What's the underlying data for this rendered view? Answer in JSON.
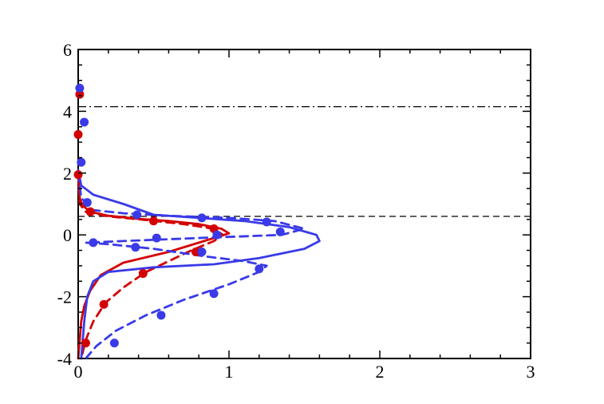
{
  "chart_data": {
    "type": "line",
    "title": "",
    "xlabel": "",
    "ylabel": "",
    "xlim": [
      0,
      3
    ],
    "ylim": [
      -4,
      6
    ],
    "grid": false,
    "legend": "none",
    "x_ticks": [
      "0",
      "1",
      "2",
      "3"
    ],
    "y_ticks": [
      "-4",
      "-2",
      "0",
      "2",
      "4",
      "6"
    ],
    "reference_lines": [
      {
        "style": "dash-dot",
        "y": 4.15,
        "color": "#000000"
      },
      {
        "style": "dashed",
        "y": 0.6,
        "color": "#000000"
      }
    ],
    "series": [
      {
        "style": "solid",
        "color": "#d40000",
        "x": [
          0.0,
          0.01,
          0.03,
          0.08,
          0.2,
          0.4,
          0.6,
          0.8,
          0.95,
          1.0,
          0.9,
          0.6,
          0.3,
          0.15,
          0.08,
          0.04,
          0.02,
          0.01,
          0.0
        ],
        "y": [
          2.0,
          1.2,
          0.95,
          0.75,
          0.62,
          0.52,
          0.45,
          0.35,
          0.2,
          0.05,
          -0.1,
          -0.55,
          -0.9,
          -1.3,
          -1.8,
          -2.3,
          -2.8,
          -3.4,
          -4.0
        ]
      },
      {
        "style": "dashed",
        "color": "#d40000",
        "x": [
          0.0,
          0.01,
          0.05,
          0.2,
          0.45,
          0.7,
          0.9,
          0.96,
          0.9,
          0.75,
          0.6,
          0.45,
          0.3,
          0.18,
          0.1,
          0.05,
          0.02
        ],
        "y": [
          2.0,
          1.0,
          0.75,
          0.6,
          0.48,
          0.35,
          0.2,
          0.0,
          -0.2,
          -0.5,
          -0.85,
          -1.2,
          -1.7,
          -2.2,
          -2.8,
          -3.4,
          -4.0
        ]
      },
      {
        "style": "solid",
        "color": "#3a3ae8",
        "x": [
          0.0,
          0.02,
          0.1,
          0.3,
          0.5,
          0.8,
          1.1,
          1.4,
          1.58,
          1.6,
          1.5,
          1.2,
          0.9,
          0.5,
          0.2,
          0.1,
          0.06,
          0.04,
          0.02
        ],
        "y": [
          2.1,
          1.6,
          1.3,
          1.0,
          0.65,
          0.55,
          0.45,
          0.25,
          0.0,
          -0.2,
          -0.45,
          -0.75,
          -0.95,
          -1.05,
          -1.2,
          -1.5,
          -2.0,
          -2.8,
          -4.0
        ]
      },
      {
        "style": "dashed",
        "color": "#3a3ae8",
        "x": [
          0.0,
          0.02,
          0.1,
          0.3,
          0.6,
          1.0,
          1.3,
          1.5,
          1.35,
          0.8,
          0.3,
          0.05,
          0.2,
          0.5,
          0.85,
          1.1,
          1.25,
          1.2,
          1.0,
          0.7,
          0.45,
          0.25,
          0.12,
          0.05
        ],
        "y": [
          2.0,
          1.2,
          0.8,
          0.7,
          0.62,
          0.55,
          0.45,
          0.2,
          0.0,
          -0.1,
          -0.2,
          -0.25,
          -0.3,
          -0.45,
          -0.7,
          -0.85,
          -1.0,
          -1.2,
          -1.6,
          -2.1,
          -2.6,
          -3.1,
          -3.6,
          -4.0
        ]
      }
    ],
    "markers": [
      {
        "color": "#d40000",
        "points": [
          [
            0.01,
            4.55
          ],
          [
            0.0,
            3.25
          ],
          [
            0.0,
            1.95
          ],
          [
            0.08,
            0.75
          ],
          [
            0.5,
            0.45
          ],
          [
            0.9,
            0.2
          ],
          [
            0.78,
            -0.55
          ],
          [
            0.43,
            -1.25
          ],
          [
            0.17,
            -2.25
          ],
          [
            0.05,
            -3.5
          ]
        ]
      },
      {
        "color": "#3a3ae8",
        "points": [
          [
            0.01,
            4.75
          ],
          [
            0.04,
            3.65
          ],
          [
            0.02,
            2.35
          ],
          [
            0.06,
            1.05
          ],
          [
            0.39,
            0.65
          ],
          [
            0.82,
            0.55
          ],
          [
            1.25,
            0.42
          ],
          [
            1.34,
            0.1
          ],
          [
            0.92,
            0.0
          ],
          [
            0.52,
            -0.1
          ],
          [
            0.1,
            -0.25
          ],
          [
            0.38,
            -0.4
          ],
          [
            0.82,
            -0.55
          ],
          [
            1.2,
            -1.1
          ],
          [
            0.9,
            -1.9
          ],
          [
            0.55,
            -2.6
          ],
          [
            0.24,
            -3.5
          ]
        ]
      }
    ]
  }
}
